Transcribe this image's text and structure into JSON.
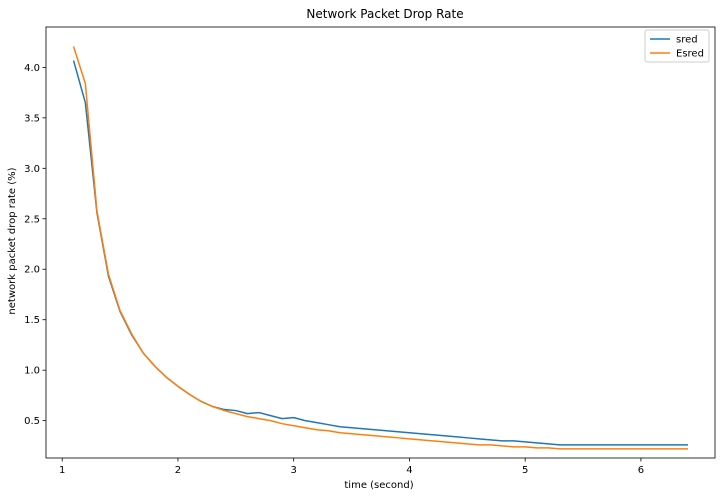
{
  "chart_data": {
    "type": "line",
    "title": "Network Packet Drop Rate",
    "xlabel": "time (second)",
    "ylabel": "network packet drop rate (%)",
    "xlim": [
      0.86,
      6.64
    ],
    "ylim": [
      0.13,
      4.4
    ],
    "x_ticks": [
      1,
      2,
      3,
      4,
      5,
      6
    ],
    "y_ticks": [
      0.5,
      1.0,
      1.5,
      2.0,
      2.5,
      3.0,
      3.5,
      4.0
    ],
    "legend_position": "top-right",
    "grid": false,
    "series": [
      {
        "name": "sred",
        "color": "#1f77b4",
        "x": [
          1.1,
          1.2,
          1.3,
          1.4,
          1.5,
          1.6,
          1.7,
          1.8,
          1.9,
          2.0,
          2.1,
          2.2,
          2.3,
          2.4,
          2.5,
          2.6,
          2.7,
          2.8,
          2.9,
          3.0,
          3.1,
          3.2,
          3.3,
          3.4,
          3.5,
          3.6,
          3.7,
          3.8,
          3.9,
          4.0,
          4.1,
          4.2,
          4.3,
          4.4,
          4.5,
          4.6,
          4.7,
          4.8,
          4.9,
          5.0,
          5.1,
          5.2,
          5.3,
          5.4,
          5.5,
          5.6,
          5.7,
          5.8,
          5.9,
          6.0,
          6.1,
          6.2,
          6.3,
          6.4
        ],
        "values": [
          4.06,
          3.65,
          2.56,
          1.93,
          1.58,
          1.35,
          1.17,
          1.04,
          0.93,
          0.84,
          0.76,
          0.69,
          0.64,
          0.61,
          0.6,
          0.57,
          0.58,
          0.55,
          0.52,
          0.53,
          0.5,
          0.48,
          0.46,
          0.44,
          0.43,
          0.42,
          0.41,
          0.4,
          0.39,
          0.38,
          0.37,
          0.36,
          0.35,
          0.34,
          0.33,
          0.32,
          0.31,
          0.3,
          0.3,
          0.29,
          0.28,
          0.27,
          0.26,
          0.26,
          0.26,
          0.26,
          0.26,
          0.26,
          0.26,
          0.26,
          0.26,
          0.26,
          0.26,
          0.26
        ]
      },
      {
        "name": "Esred",
        "color": "#ff7f0e",
        "x": [
          1.1,
          1.2,
          1.3,
          1.4,
          1.5,
          1.6,
          1.7,
          1.8,
          1.9,
          2.0,
          2.1,
          2.2,
          2.3,
          2.4,
          2.5,
          2.6,
          2.7,
          2.8,
          2.9,
          3.0,
          3.1,
          3.2,
          3.3,
          3.4,
          3.5,
          3.6,
          3.7,
          3.8,
          3.9,
          4.0,
          4.1,
          4.2,
          4.3,
          4.4,
          4.5,
          4.6,
          4.7,
          4.8,
          4.9,
          5.0,
          5.1,
          5.2,
          5.3,
          5.4,
          5.5,
          5.6,
          5.7,
          5.8,
          5.9,
          6.0,
          6.1,
          6.2,
          6.3,
          6.4
        ],
        "values": [
          4.2,
          3.84,
          2.58,
          1.95,
          1.59,
          1.36,
          1.17,
          1.04,
          0.93,
          0.84,
          0.76,
          0.69,
          0.64,
          0.6,
          0.57,
          0.54,
          0.52,
          0.5,
          0.47,
          0.45,
          0.43,
          0.41,
          0.4,
          0.38,
          0.37,
          0.36,
          0.35,
          0.34,
          0.33,
          0.32,
          0.31,
          0.3,
          0.29,
          0.28,
          0.27,
          0.26,
          0.26,
          0.25,
          0.24,
          0.24,
          0.23,
          0.23,
          0.22,
          0.22,
          0.22,
          0.22,
          0.22,
          0.22,
          0.22,
          0.22,
          0.22,
          0.22,
          0.22,
          0.22
        ]
      }
    ]
  }
}
